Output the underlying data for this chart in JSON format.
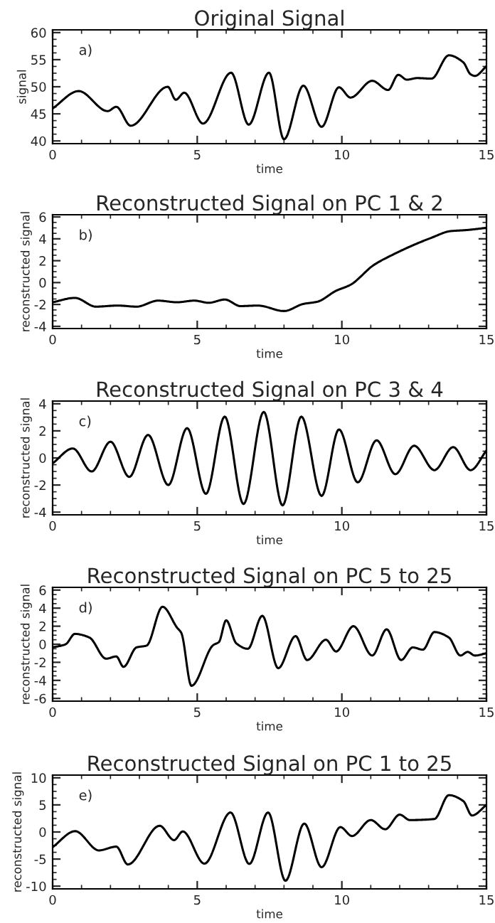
{
  "chart_data": [
    {
      "type": "line",
      "title": "Original Signal",
      "xlabel": "time",
      "ylabel": "signal",
      "annotations": [
        "a)"
      ],
      "xlim": [
        0,
        15
      ],
      "xticks": [
        0,
        5,
        10,
        15
      ],
      "ylim": [
        39.5,
        60.5
      ],
      "yticks": [
        40,
        45,
        50,
        55,
        60
      ],
      "x": [
        0,
        0.9,
        1.9,
        2.2,
        2.7,
        3.98,
        4.26,
        4.55,
        5.2,
        6.17,
        6.78,
        7.48,
        8.0,
        8.67,
        9.3,
        9.9,
        10.3,
        11.05,
        11.6,
        11.95,
        12.25,
        12.6,
        13.1,
        13.7,
        14.2,
        14.45,
        14.6,
        15
      ],
      "series": [
        {
          "color": "#000000",
          "values": [
            46.0,
            49.2,
            45.5,
            46.3,
            42.8,
            50.0,
            47.6,
            48.9,
            43.2,
            52.6,
            43.0,
            52.6,
            40.3,
            50.2,
            42.6,
            49.9,
            48.0,
            51.1,
            49.4,
            52.2,
            51.3,
            51.6,
            51.5,
            55.8,
            54.5,
            52.3,
            52.0,
            53.8
          ]
        }
      ]
    },
    {
      "type": "line",
      "title": "Reconstructed Signal on PC 1 & 2",
      "xlabel": "time",
      "ylabel": "reconstructed signal",
      "annotations": [
        "b)"
      ],
      "xlim": [
        0,
        15
      ],
      "xticks": [
        0,
        5,
        10,
        15
      ],
      "ylim": [
        -4.2,
        6.2
      ],
      "yticks": [
        -4,
        -2,
        0,
        2,
        4,
        6
      ],
      "x": [
        0,
        0.77,
        1.5,
        2.25,
        2.9,
        3.65,
        4.3,
        4.9,
        5.4,
        5.95,
        6.5,
        7.1,
        8.0,
        8.67,
        9.15,
        9.8,
        10.3,
        11.1,
        11.8,
        12.45,
        13.1,
        13.75,
        14.3,
        15
      ],
      "series": [
        {
          "color": "#000000",
          "values": [
            -1.8,
            -1.4,
            -2.2,
            -2.1,
            -2.2,
            -1.65,
            -1.8,
            -1.65,
            -1.85,
            -1.55,
            -2.15,
            -2.1,
            -2.6,
            -1.95,
            -1.75,
            -0.75,
            -0.2,
            1.6,
            2.6,
            3.4,
            4.1,
            4.7,
            4.8,
            5.0
          ]
        }
      ]
    },
    {
      "type": "line",
      "title": "Reconstructed Signal on PC 3 & 4",
      "xlabel": "time",
      "ylabel": "reconstructed signal",
      "annotations": [
        "c)"
      ],
      "xlim": [
        0,
        15
      ],
      "xticks": [
        0,
        5,
        10,
        15
      ],
      "ylim": [
        -4.2,
        4.2
      ],
      "yticks": [
        -4,
        -2,
        0,
        2,
        4
      ],
      "x": [
        0,
        0.7,
        1.35,
        2.0,
        2.65,
        3.3,
        4.0,
        4.65,
        5.3,
        5.95,
        6.6,
        7.3,
        7.95,
        8.6,
        9.3,
        9.9,
        10.55,
        11.2,
        11.85,
        12.5,
        13.2,
        13.85,
        14.45,
        15
      ],
      "series": [
        {
          "color": "#000000",
          "values": [
            -0.4,
            0.7,
            -1.0,
            1.2,
            -1.4,
            1.7,
            -2.0,
            2.2,
            -2.65,
            3.05,
            -3.4,
            3.4,
            -3.5,
            3.05,
            -2.8,
            2.1,
            -1.8,
            1.3,
            -1.2,
            0.9,
            -0.9,
            0.8,
            -0.9,
            0.55
          ]
        }
      ]
    },
    {
      "type": "line",
      "title": "Reconstructed Signal on PC 5 to 25",
      "xlabel": "time",
      "ylabel": "reconstructed signal",
      "annotations": [
        "d)"
      ],
      "xlim": [
        0,
        15
      ],
      "xticks": [
        0,
        5,
        10,
        15
      ],
      "ylim": [
        -6.3,
        6.3
      ],
      "yticks": [
        -6,
        -4,
        -2,
        0,
        2,
        4,
        6
      ],
      "x": [
        0,
        0.45,
        0.77,
        1.27,
        1.85,
        2.2,
        2.45,
        2.9,
        3.25,
        3.8,
        4.3,
        4.45,
        4.8,
        5.55,
        5.75,
        6.0,
        6.35,
        6.75,
        7.25,
        7.8,
        8.4,
        8.8,
        9.45,
        9.8,
        10.4,
        11.05,
        11.55,
        12.05,
        12.45,
        12.8,
        13.2,
        13.7,
        14.1,
        14.35,
        14.6,
        15
      ],
      "series": [
        {
          "color": "#000000",
          "values": [
            -0.35,
            0.0,
            1.15,
            0.75,
            -1.6,
            -1.35,
            -2.5,
            -0.35,
            -0.15,
            4.15,
            1.85,
            1.25,
            -4.6,
            -0.1,
            0.25,
            2.65,
            0.1,
            -0.5,
            3.15,
            -2.65,
            0.9,
            -1.75,
            0.5,
            -0.8,
            2.0,
            -1.25,
            1.65,
            -1.75,
            -0.35,
            -0.6,
            1.35,
            0.75,
            -1.25,
            -0.85,
            -1.25,
            -1.0
          ]
        }
      ]
    },
    {
      "type": "line",
      "title": "Reconstructed Signal on PC 1 to 25",
      "xlabel": "time",
      "ylabel": "reconstructed signal",
      "annotations": [
        "e)"
      ],
      "xlim": [
        0,
        15
      ],
      "xticks": [
        0,
        5,
        10,
        15
      ],
      "ylim": [
        -10.5,
        10.5
      ],
      "yticks": [
        -10,
        -5,
        0,
        5,
        10
      ],
      "x": [
        0,
        0.78,
        1.6,
        2.2,
        2.6,
        3.7,
        4.2,
        4.5,
        5.25,
        6.15,
        6.8,
        7.45,
        8.05,
        8.7,
        9.3,
        9.95,
        10.35,
        11.0,
        11.5,
        12.0,
        12.35,
        13.2,
        13.7,
        14.2,
        14.5,
        15
      ],
      "series": [
        {
          "color": "#000000",
          "values": [
            -2.8,
            0.15,
            -3.4,
            -2.7,
            -6.0,
            1.15,
            -1.5,
            0.1,
            -5.85,
            3.6,
            -5.9,
            3.6,
            -9.0,
            1.55,
            -6.5,
            0.9,
            -0.75,
            2.2,
            0.5,
            3.2,
            2.2,
            2.4,
            6.8,
            5.7,
            3.05,
            5.0
          ]
        }
      ]
    }
  ]
}
